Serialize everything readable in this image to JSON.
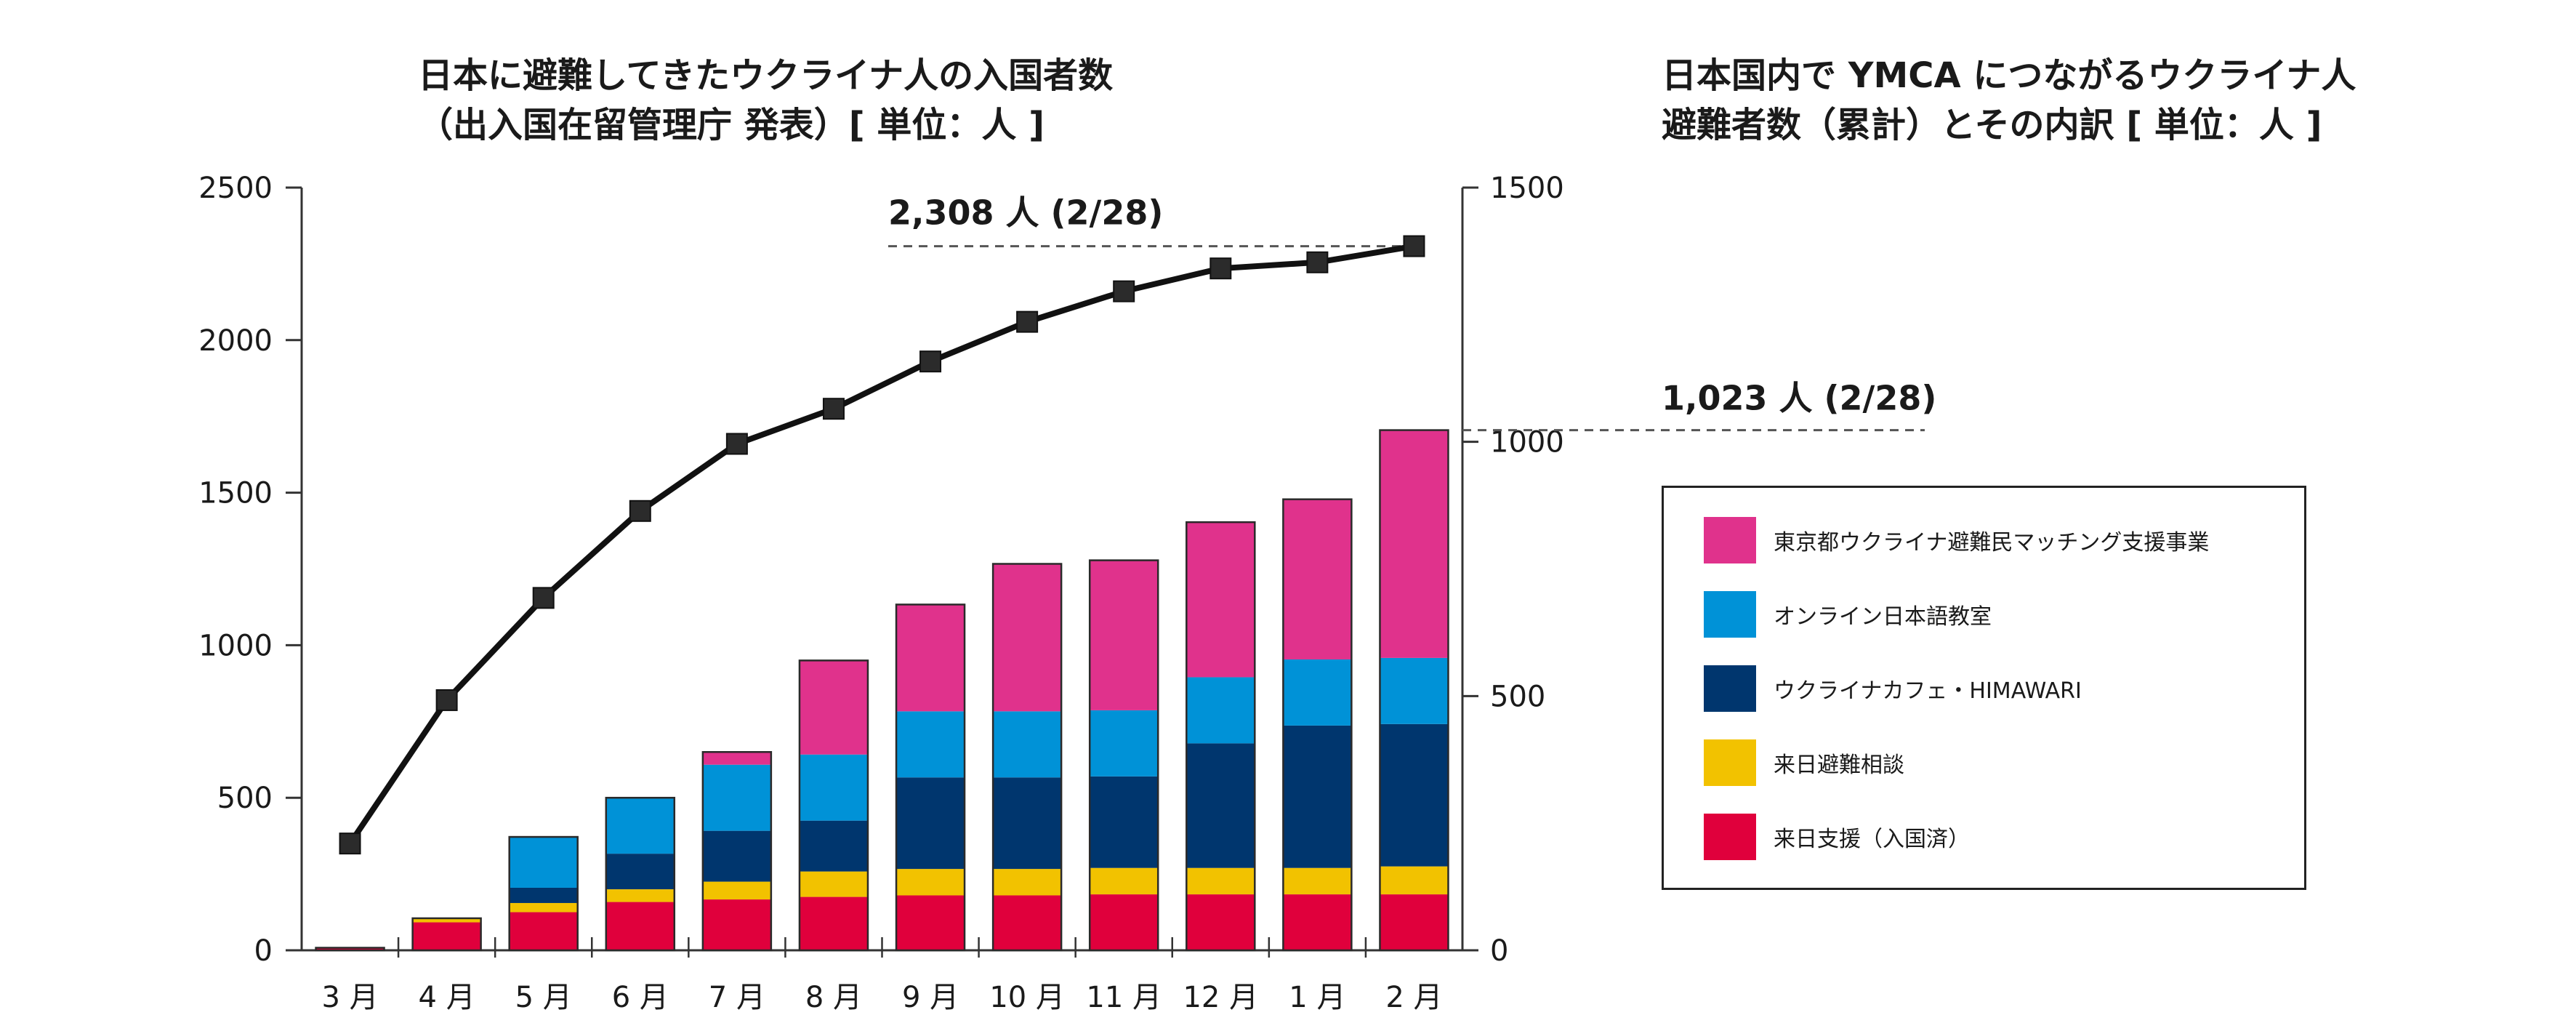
{
  "titles": {
    "left_line1": "日本に避難してきたウクライナ人の入国者数",
    "left_line2": "（出入国在留管理庁 発表）[ 単位：人 ]",
    "right_line1": "日本国内で YMCA につながるウクライナ人",
    "right_line2": "避難者数（累計）とその内訳 [ 単位：人 ]"
  },
  "chart_data": {
    "type": "bar",
    "categories": [
      "3 月",
      "4 月",
      "5 月",
      "6 月",
      "7 月",
      "8 月",
      "9 月",
      "10 月",
      "11 月",
      "12 月",
      "1 月",
      "2 月"
    ],
    "left_axis": {
      "min": 0,
      "max": 2500,
      "ticks": [
        0,
        500,
        1000,
        1500,
        2000,
        2500
      ]
    },
    "right_axis": {
      "min": 0,
      "max": 1500,
      "ticks": [
        0,
        500,
        1000,
        1500
      ]
    },
    "line_series": {
      "axis": "left",
      "values": [
        350,
        820,
        1155,
        1440,
        1660,
        1775,
        1930,
        2060,
        2160,
        2235,
        2255,
        2308
      ]
    },
    "stacked_series_axis": "right",
    "stacked_series": [
      {
        "name": "来日支援（入国済）",
        "color": "#E0003C",
        "values": [
          5,
          55,
          75,
          95,
          100,
          105,
          108,
          108,
          110,
          110,
          110,
          110
        ]
      },
      {
        "name": "来日避難相談",
        "color": "#F2C200",
        "values": [
          0,
          8,
          18,
          25,
          35,
          50,
          52,
          52,
          52,
          52,
          52,
          55
        ]
      },
      {
        "name": "ウクライナカフェ・HIMAWARI",
        "color": "#00366E",
        "values": [
          0,
          0,
          30,
          70,
          100,
          100,
          180,
          180,
          180,
          245,
          280,
          280
        ]
      },
      {
        "name": "オンライン日本語教室",
        "color": "#0092D7",
        "values": [
          0,
          0,
          100,
          110,
          130,
          130,
          130,
          130,
          130,
          130,
          130,
          130
        ]
      },
      {
        "name": "東京都ウクライナ避難民マッチング支援事業",
        "color": "#E0328C",
        "values": [
          0,
          0,
          0,
          0,
          25,
          185,
          210,
          290,
          295,
          305,
          315,
          448
        ]
      }
    ],
    "annotations": [
      {
        "text": "2,308 人 (2/28)",
        "axis": "left",
        "value": 2308
      },
      {
        "text": "1,023 人 (2/28)",
        "axis": "right",
        "value": 1023
      }
    ]
  }
}
